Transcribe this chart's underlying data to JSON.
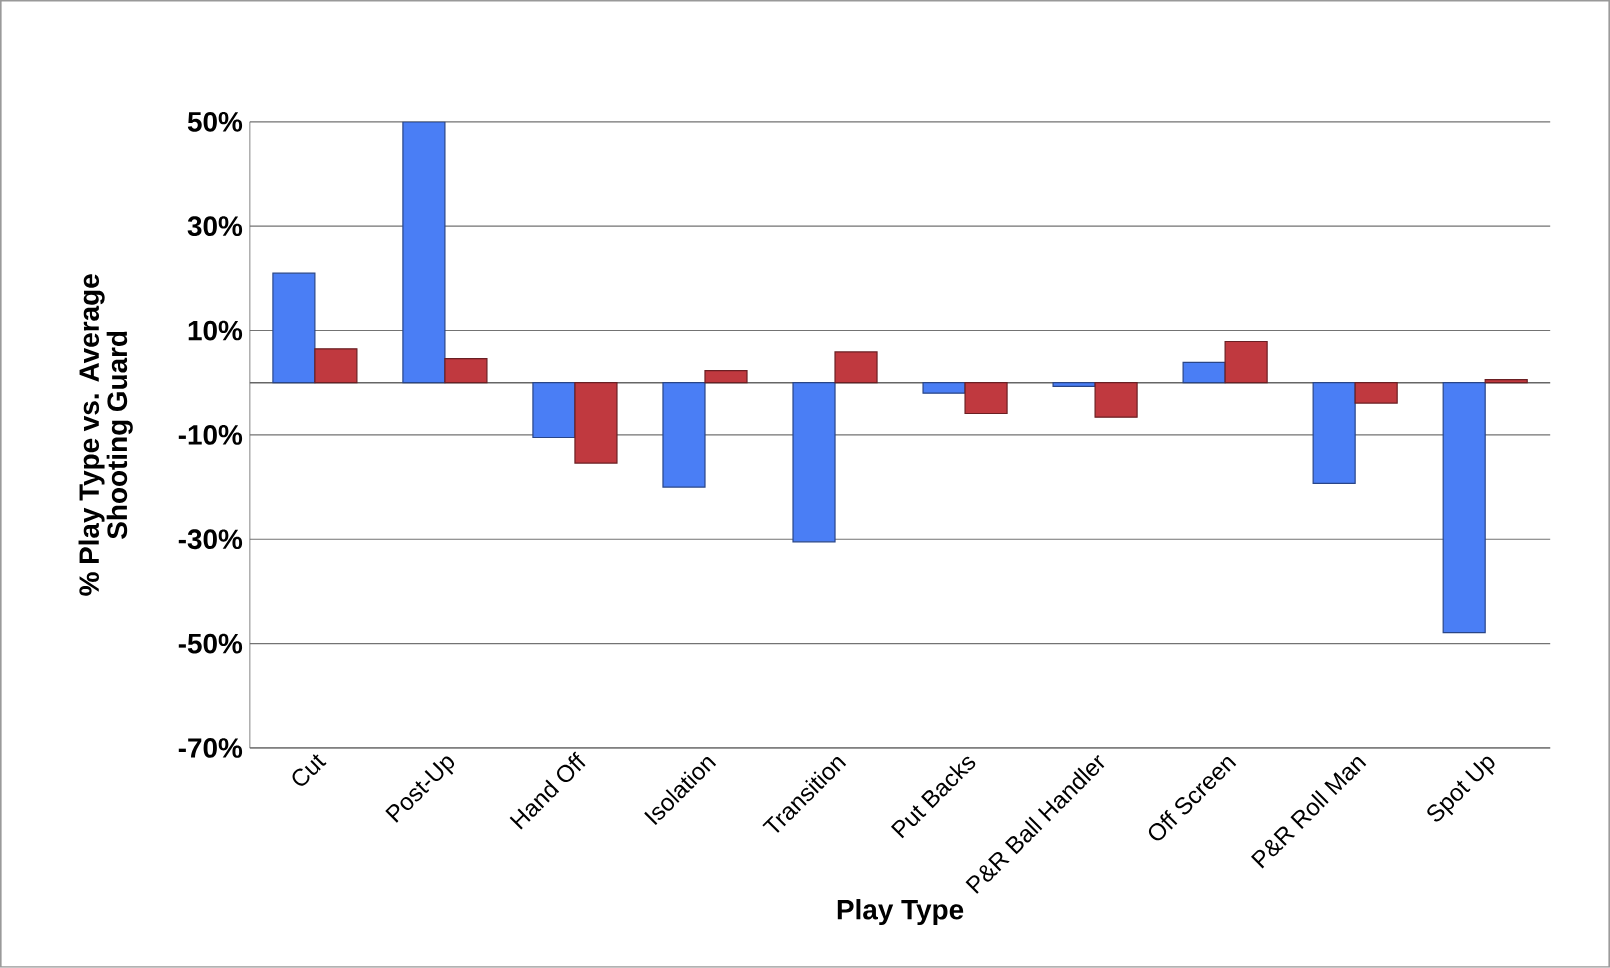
{
  "chart_data": {
    "type": "bar",
    "xlabel": "Play Type",
    "ylabel": "% Play Type vs. Average Shooting Guard",
    "categories": [
      "Cut",
      "Post-Up",
      "Hand Off",
      "Isolation",
      "Transition",
      "Put Backs",
      "P&R Ball Handler",
      "Off Screen",
      "P&R Roll Man",
      "Spot Up"
    ],
    "series": [
      {
        "color": "#4a7ef5",
        "values": [
          21,
          50,
          -10.5,
          -20,
          -30.5,
          -2,
          -0.7,
          3.9,
          -19.3,
          -47.9
        ]
      },
      {
        "color": "#c0393f",
        "values": [
          6.5,
          4.6,
          -15.4,
          2.3,
          5.9,
          -5.9,
          -6.6,
          7.9,
          -3.9,
          0.6
        ]
      }
    ],
    "ylim": [
      -70,
      50
    ],
    "yticks": [
      {
        "value": 50,
        "label": "50%"
      },
      {
        "value": 30,
        "label": "30%"
      },
      {
        "value": 10,
        "label": "10%"
      },
      {
        "value": -10,
        "label": "-10%"
      },
      {
        "value": -30,
        "label": "-30%"
      },
      {
        "value": -50,
        "label": "-50%"
      },
      {
        "value": -70,
        "label": "-70%"
      }
    ],
    "grid": "y"
  }
}
